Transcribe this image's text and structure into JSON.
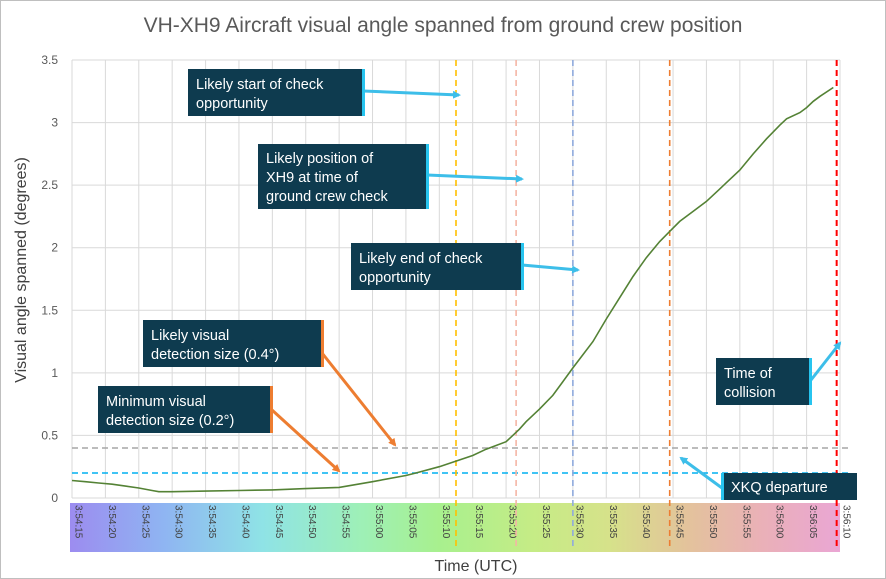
{
  "chart_data": {
    "type": "line",
    "title": "VH-XH9 Aircraft visual angle spanned from ground crew position",
    "xlabel": "Time (UTC)",
    "ylabel": "Visual angle spanned (degrees)",
    "ylim": [
      0,
      3.5
    ],
    "yticks": [
      "0",
      "0.5",
      "1",
      "1.5",
      "2",
      "2.5",
      "3",
      "3.5"
    ],
    "x_start_seconds": 0,
    "x_end_seconds": 115,
    "x_tick_interval_seconds": 5,
    "xtick_labels": [
      "3:54:15",
      "3:54:20",
      "3:54:25",
      "3:54:30",
      "3:54:35",
      "3:54:40",
      "3:54:45",
      "3:54:50",
      "3:54:55",
      "3:55:00",
      "3:55:05",
      "3:55:10",
      "3:55:15",
      "3:55:20",
      "3:55:25",
      "3:55:30",
      "3:55:35",
      "3:55:40",
      "3:55:45",
      "3:55:50",
      "3:55:55",
      "3:56:00",
      "3:56:05",
      "3:56:10"
    ],
    "grid": true,
    "series": [
      {
        "name": "Visual angle spanned",
        "color": "#548235",
        "x_seconds": [
          0,
          2,
          4,
          6,
          8,
          10,
          12,
          13,
          15,
          20,
          25,
          30,
          35,
          40,
          45,
          50,
          51.5,
          55,
          60,
          62,
          65,
          66,
          67,
          68,
          70,
          72,
          73.5,
          75,
          78,
          80,
          82,
          84,
          86,
          88,
          89.5,
          91,
          93,
          95,
          97,
          98,
          100,
          102,
          104,
          106,
          107,
          109,
          110,
          111,
          112,
          114
        ],
        "values": [
          0.14,
          0.13,
          0.12,
          0.11,
          0.095,
          0.08,
          0.06,
          0.05,
          0.05,
          0.055,
          0.06,
          0.065,
          0.075,
          0.085,
          0.13,
          0.18,
          0.2,
          0.25,
          0.34,
          0.39,
          0.45,
          0.5,
          0.55,
          0.61,
          0.71,
          0.82,
          0.93,
          1.04,
          1.25,
          1.43,
          1.6,
          1.77,
          1.92,
          2.05,
          2.13,
          2.21,
          2.29,
          2.37,
          2.47,
          2.52,
          2.62,
          2.75,
          2.87,
          2.98,
          3.03,
          3.08,
          3.12,
          3.17,
          3.21,
          3.28
        ]
      }
    ],
    "vertical_markers": [
      {
        "name": "start-of-check",
        "x_seconds": 57.5,
        "color": "#ffc000"
      },
      {
        "name": "xh9-position",
        "x_seconds": 66.5,
        "color": "#f4b6a5"
      },
      {
        "name": "end-of-check",
        "x_seconds": 75,
        "color": "#8faadc"
      },
      {
        "name": "xkq-departure",
        "x_seconds": 89.5,
        "color": "#ed7d31"
      },
      {
        "name": "collision",
        "x_seconds": 114.5,
        "color": "#ff0000"
      }
    ],
    "horizontal_markers": [
      {
        "name": "detection-0.4",
        "y": 0.4,
        "color": "#a6a6a6"
      },
      {
        "name": "detection-0.2",
        "y": 0.2,
        "color": "#00b0f0"
      }
    ],
    "annotations": [
      {
        "name": "likely-start",
        "lines": [
          "Likely start of check",
          "opportunity"
        ],
        "arrow": "cyan"
      },
      {
        "name": "likely-position",
        "lines": [
          "Likely position of",
          "XH9 at time of",
          "ground crew check"
        ],
        "arrow": "cyan"
      },
      {
        "name": "likely-end",
        "lines": [
          "Likely end of check",
          "opportunity"
        ],
        "arrow": "cyan"
      },
      {
        "name": "likely-visual",
        "lines": [
          "Likely visual",
          "detection size (0.4°)"
        ],
        "arrow": "orange"
      },
      {
        "name": "minimum-visual",
        "lines": [
          "Minimum visual",
          "detection size (0.2°)"
        ],
        "arrow": "orange"
      },
      {
        "name": "time-of-collision",
        "lines": [
          "Time of",
          "collision"
        ],
        "arrow": "cyan"
      },
      {
        "name": "xkq-departure",
        "lines": [
          "XKQ departure"
        ],
        "arrow": "cyan"
      }
    ]
  },
  "colors": {
    "callout_bg": "#0e3b4f",
    "callout_accent": "#27c4ef",
    "callout_accent_orange": "#ed7d31",
    "arrow_cyan": "#3dbee9",
    "arrow_orange": "#ed7d31",
    "grid": "#d9d9d9"
  }
}
